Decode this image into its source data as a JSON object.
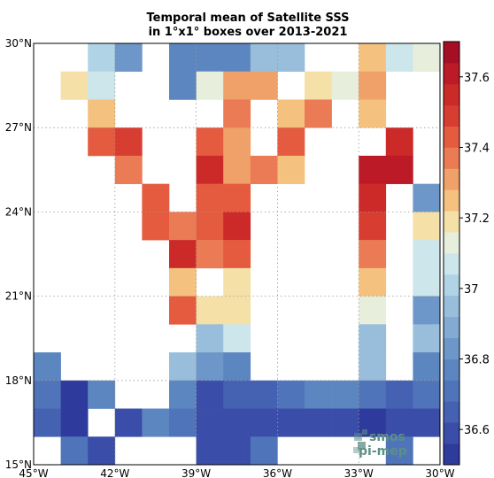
{
  "chart_data": {
    "type": "heatmap",
    "title_line1": "Temporal mean of Satellite SSS",
    "title_line2": "in 1°x1° boxes over 2013-2021",
    "x_range": [
      -45,
      -30
    ],
    "y_range": [
      15,
      30
    ],
    "x_ticks": [
      {
        "value": -45,
        "label": "45°W"
      },
      {
        "value": -42,
        "label": "42°W"
      },
      {
        "value": -39,
        "label": "39°W"
      },
      {
        "value": -36,
        "label": "36°W"
      },
      {
        "value": -33,
        "label": "33°W"
      },
      {
        "value": -30,
        "label": "30°W"
      }
    ],
    "y_ticks": [
      {
        "value": 15,
        "label": "15°N"
      },
      {
        "value": 18,
        "label": "18°N"
      },
      {
        "value": 21,
        "label": "21°N"
      },
      {
        "value": 24,
        "label": "24°N"
      },
      {
        "value": 27,
        "label": "27°N"
      },
      {
        "value": 30,
        "label": "30°N"
      }
    ],
    "grid": true,
    "colorbar": {
      "min": 36.5,
      "max": 37.7,
      "ticks": [
        "36.6",
        "36.8",
        "37",
        "37.2",
        "37.4",
        "37.6"
      ],
      "colors": [
        "#2e3a9c",
        "#3a4da8",
        "#4561b2",
        "#5074ba",
        "#5c86c0",
        "#6d97c8",
        "#82aad2",
        "#98bedc",
        "#b0d3e5",
        "#cce6ec",
        "#e7eedc",
        "#f5e0a7",
        "#f5c17f",
        "#f0a069",
        "#ea7b54",
        "#e45b40",
        "#d83d31",
        "#cb2a29",
        "#bb1a26",
        "#a50f25"
      ]
    },
    "cells_columns": [
      "lon_west",
      "lat_south",
      "sss"
    ],
    "cells": [
      [
        -43,
        29,
        37.04
      ],
      [
        -42,
        29,
        36.86
      ],
      [
        -40,
        29,
        36.76
      ],
      [
        -39,
        29,
        36.76
      ],
      [
        -38,
        29,
        36.76
      ],
      [
        -37,
        29,
        36.98
      ],
      [
        -36,
        29,
        36.98
      ],
      [
        -33,
        29,
        37.26
      ],
      [
        -32,
        29,
        37.06
      ],
      [
        -31,
        29,
        37.14
      ],
      [
        -44,
        28,
        37.22
      ],
      [
        -43,
        28,
        37.06
      ],
      [
        -40,
        28,
        36.78
      ],
      [
        -39,
        28,
        37.14
      ],
      [
        -38,
        28,
        37.3
      ],
      [
        -37,
        28,
        37.3
      ],
      [
        -35,
        28,
        37.22
      ],
      [
        -34,
        28,
        37.16
      ],
      [
        -33,
        28,
        37.3
      ],
      [
        -43,
        27,
        37.28
      ],
      [
        -38,
        27,
        37.4
      ],
      [
        -36,
        27,
        37.26
      ],
      [
        -35,
        27,
        37.34
      ],
      [
        -33,
        27,
        37.26
      ],
      [
        -43,
        26,
        37.44
      ],
      [
        -42,
        26,
        37.5
      ],
      [
        -39,
        26,
        37.44
      ],
      [
        -38,
        26,
        37.32
      ],
      [
        -36,
        26,
        37.42
      ],
      [
        -32,
        26,
        37.54
      ],
      [
        -42,
        25,
        37.38
      ],
      [
        -39,
        25,
        37.58
      ],
      [
        -38,
        25,
        37.32
      ],
      [
        -37,
        25,
        37.38
      ],
      [
        -36,
        25,
        37.28
      ],
      [
        -33,
        25,
        37.64
      ],
      [
        -32,
        25,
        37.64
      ],
      [
        -41,
        24,
        37.46
      ],
      [
        -39,
        24,
        37.42
      ],
      [
        -38,
        24,
        37.42
      ],
      [
        -33,
        24,
        37.56
      ],
      [
        -31,
        24,
        36.84
      ],
      [
        -41,
        23,
        37.46
      ],
      [
        -40,
        23,
        37.38
      ],
      [
        -39,
        23,
        37.44
      ],
      [
        -38,
        23,
        37.52
      ],
      [
        -33,
        23,
        37.5
      ],
      [
        -31,
        23,
        37.2
      ],
      [
        -40,
        22,
        37.54
      ],
      [
        -39,
        22,
        37.38
      ],
      [
        -38,
        22,
        37.44
      ],
      [
        -33,
        22,
        37.38
      ],
      [
        -31,
        22,
        37.08
      ],
      [
        -40,
        21,
        37.26
      ],
      [
        -38,
        21,
        37.2
      ],
      [
        -33,
        21,
        37.26
      ],
      [
        -31,
        21,
        37.08
      ],
      [
        -40,
        20,
        37.44
      ],
      [
        -39,
        20,
        37.2
      ],
      [
        -38,
        20,
        37.2
      ],
      [
        -33,
        20,
        37.12
      ],
      [
        -31,
        20,
        36.86
      ],
      [
        -39,
        19,
        36.98
      ],
      [
        -38,
        19,
        37.06
      ],
      [
        -33,
        19,
        36.98
      ],
      [
        -31,
        19,
        36.92
      ],
      [
        -45,
        18,
        36.8
      ],
      [
        -40,
        18,
        36.98
      ],
      [
        -39,
        18,
        36.84
      ],
      [
        -38,
        18,
        36.76
      ],
      [
        -33,
        18,
        36.92
      ],
      [
        -31,
        18,
        36.8
      ],
      [
        -45,
        17,
        36.7
      ],
      [
        -44,
        17,
        36.52
      ],
      [
        -43,
        17,
        36.76
      ],
      [
        -40,
        17,
        36.74
      ],
      [
        -39,
        17,
        36.62
      ],
      [
        -38,
        17,
        36.64
      ],
      [
        -37,
        17,
        36.68
      ],
      [
        -36,
        17,
        36.7
      ],
      [
        -35,
        17,
        36.74
      ],
      [
        -34,
        17,
        36.74
      ],
      [
        -33,
        17,
        36.7
      ],
      [
        -32,
        17,
        36.68
      ],
      [
        -31,
        17,
        36.7
      ],
      [
        -45,
        16,
        36.64
      ],
      [
        -44,
        16,
        36.52
      ],
      [
        -42,
        16,
        36.6
      ],
      [
        -41,
        16,
        36.76
      ],
      [
        -40,
        16,
        36.7
      ],
      [
        -39,
        16,
        36.62
      ],
      [
        -38,
        16,
        36.62
      ],
      [
        -37,
        16,
        36.62
      ],
      [
        -36,
        16,
        36.58
      ],
      [
        -35,
        16,
        36.62
      ],
      [
        -34,
        16,
        36.62
      ],
      [
        -33,
        16,
        36.52
      ],
      [
        -32,
        16,
        36.62
      ],
      [
        -31,
        16,
        36.62
      ],
      [
        -44,
        15,
        36.7
      ],
      [
        -43,
        15,
        36.58
      ],
      [
        -39,
        15,
        36.58
      ],
      [
        -38,
        15,
        36.58
      ],
      [
        -37,
        15,
        36.7
      ],
      [
        -32,
        15,
        36.7
      ]
    ]
  },
  "logo": {
    "line1": "smos",
    "line2": "pi-mep"
  }
}
